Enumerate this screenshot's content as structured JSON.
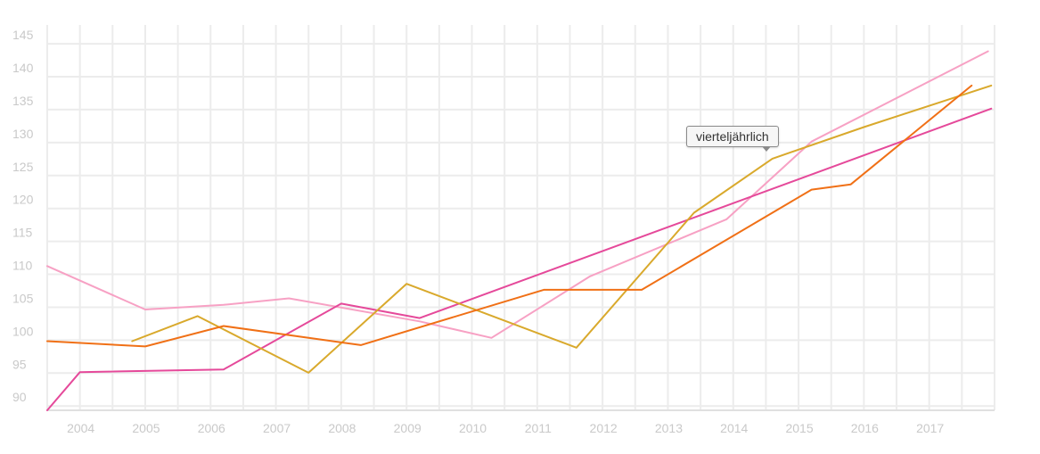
{
  "chart_data": {
    "type": "line",
    "title": "",
    "xlabel": "",
    "ylabel": "",
    "x_ticks": [
      "2004",
      "2005",
      "2006",
      "2007",
      "2008",
      "2009",
      "2010",
      "2011",
      "2012",
      "2013",
      "2014",
      "2015",
      "2016",
      "2017"
    ],
    "y_ticks": [
      90,
      95,
      100,
      105,
      110,
      115,
      120,
      125,
      130,
      135,
      140,
      145
    ],
    "xlim": [
      2003.5,
      2018.0
    ],
    "ylim": [
      88.0,
      146.5
    ],
    "grid": true,
    "legend": "none",
    "series": [
      {
        "color": "#f7a1c4",
        "points": [
          [
            2003.5,
            109.9
          ],
          [
            2005.0,
            103.3
          ],
          [
            2006.2,
            104.0
          ],
          [
            2007.2,
            105.0
          ],
          [
            2009.2,
            101.5
          ],
          [
            2010.3,
            99.0
          ],
          [
            2011.8,
            108.3
          ],
          [
            2013.9,
            117.0
          ],
          [
            2015.2,
            128.8
          ],
          [
            2017.9,
            142.5
          ]
        ]
      },
      {
        "color": "#e5499a",
        "points": [
          [
            2003.5,
            88.0
          ],
          [
            2004.0,
            93.8
          ],
          [
            2006.2,
            94.2
          ],
          [
            2008.0,
            104.2
          ],
          [
            2009.2,
            102.0
          ],
          [
            2017.95,
            133.8
          ]
        ]
      },
      {
        "color": "#d9a92c",
        "points": [
          [
            2004.8,
            98.5
          ],
          [
            2005.8,
            102.3
          ],
          [
            2007.5,
            93.7
          ],
          [
            2009.0,
            107.2
          ],
          [
            2011.6,
            97.5
          ],
          [
            2013.4,
            118.0
          ],
          [
            2014.6,
            126.2
          ],
          [
            2016.0,
            131.0
          ],
          [
            2017.95,
            137.3
          ]
        ]
      },
      {
        "color": "#f07016",
        "points": [
          [
            2003.5,
            98.5
          ],
          [
            2005.0,
            97.7
          ],
          [
            2006.2,
            100.8
          ],
          [
            2008.3,
            97.9
          ],
          [
            2011.1,
            106.3
          ],
          [
            2012.6,
            106.3
          ],
          [
            2015.2,
            121.5
          ],
          [
            2015.8,
            122.3
          ],
          [
            2017.65,
            137.3
          ]
        ]
      }
    ],
    "annotations": [
      {
        "text": "vierteljährlich"
      }
    ]
  }
}
